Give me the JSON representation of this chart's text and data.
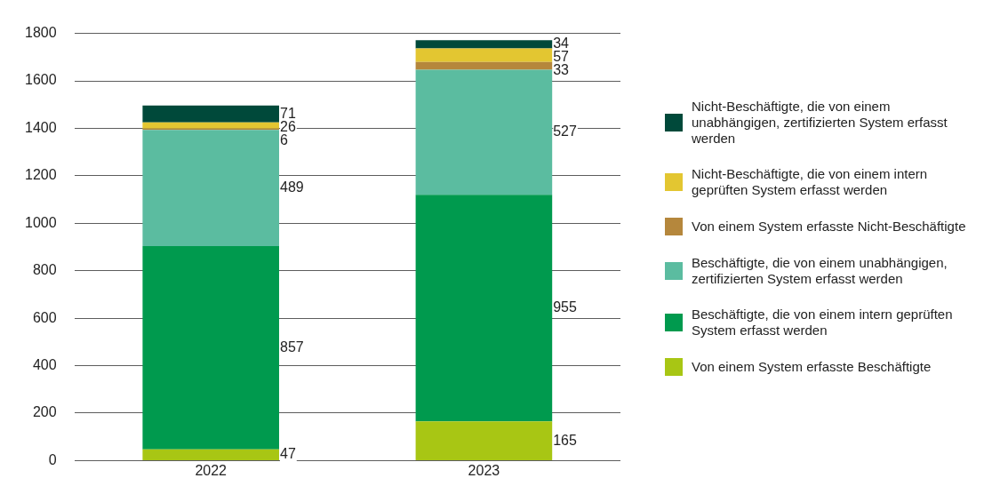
{
  "chart_data": {
    "type": "bar",
    "stacked": true,
    "categories": [
      "2022",
      "2023"
    ],
    "series": [
      {
        "name": "Von einem System erfasste Beschäftigte",
        "color": "#a8c614",
        "values": [
          47,
          165
        ]
      },
      {
        "name": "Beschäftigte, die von einem intern geprüften System erfasst werden",
        "color": "#009a4e",
        "values": [
          857,
          955
        ]
      },
      {
        "name": "Beschäftigte, die von einem unabhängigen, zertifizierten System erfasst werden",
        "color": "#5bbca0",
        "values": [
          489,
          527
        ]
      },
      {
        "name": "Von einem System erfasste Nicht-Beschäftigte",
        "color": "#b5873c",
        "values": [
          6,
          33
        ]
      },
      {
        "name": "Nicht-Beschäftigte, die von einem intern geprüften System erfasst werden",
        "color": "#e3c631",
        "values": [
          26,
          57
        ]
      },
      {
        "name": "Nicht-Beschäftigte, die von einem unabhängigen, zertifizierten System erfasst werden",
        "color": "#00493a",
        "values": [
          71,
          34
        ]
      }
    ],
    "ylim": [
      0,
      1800
    ],
    "yticks": [
      0,
      200,
      400,
      600,
      800,
      1000,
      1200,
      1400,
      1600,
      1800
    ],
    "grid": "y",
    "legend": "right",
    "data_labels": true
  }
}
